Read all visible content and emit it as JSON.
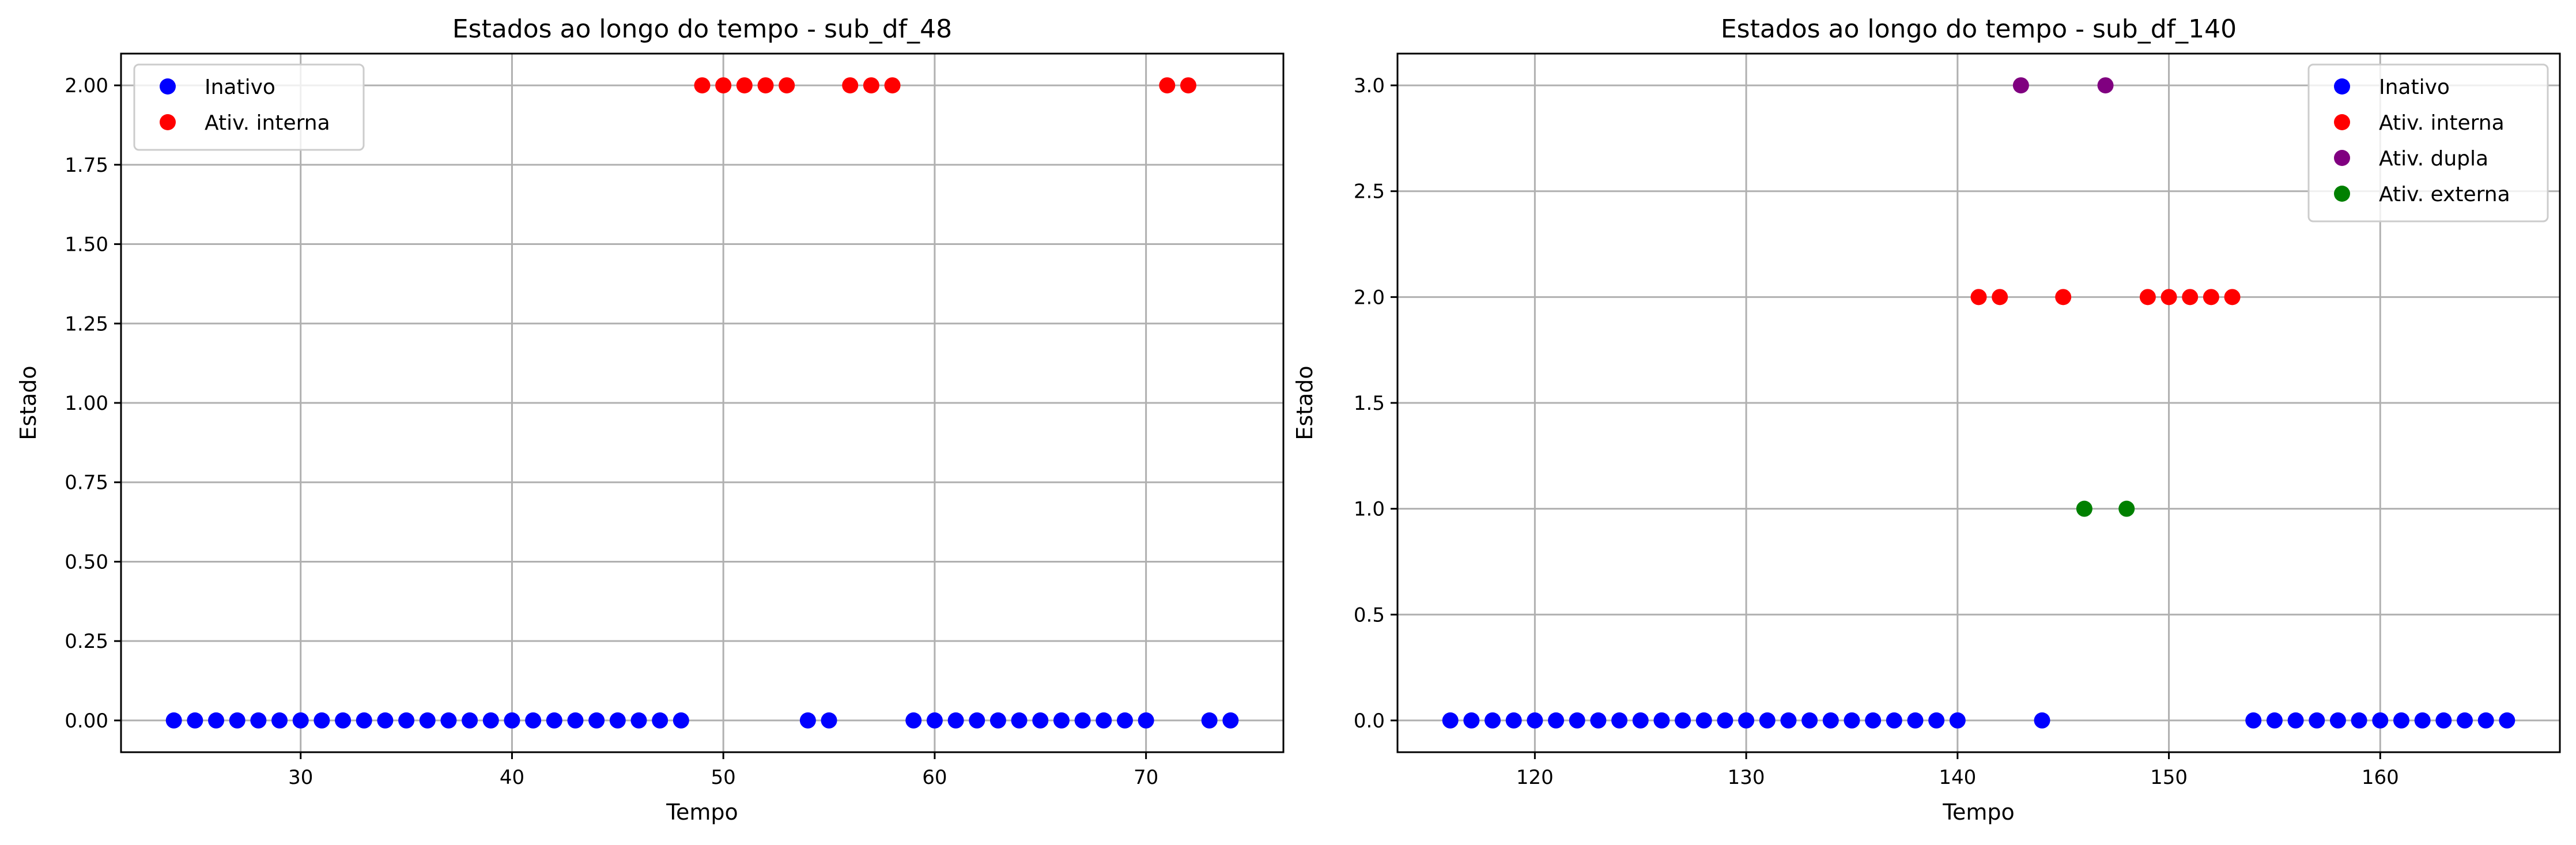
{
  "chart_data": [
    {
      "type": "scatter",
      "title": "Estados ao longo do tempo - sub_df_48",
      "xlabel": "Tempo",
      "ylabel": "Estado",
      "xlim": [
        21.5,
        76.5
      ],
      "ylim": [
        -0.1,
        2.1
      ],
      "xticks": [
        30,
        40,
        50,
        60,
        70
      ],
      "xtick_labels": [
        "30",
        "40",
        "50",
        "60",
        "70"
      ],
      "yticks": [
        0,
        0.25,
        0.5,
        0.75,
        1.0,
        1.25,
        1.5,
        1.75,
        2.0
      ],
      "ytick_labels": [
        "0.00",
        "0.25",
        "0.50",
        "0.75",
        "1.00",
        "1.25",
        "1.50",
        "1.75",
        "2.00"
      ],
      "grid": true,
      "legend_position": "top-left",
      "series": [
        {
          "name": "Inativo",
          "color": "#0000ff",
          "x": [
            24,
            25,
            26,
            27,
            28,
            29,
            30,
            31,
            32,
            33,
            34,
            35,
            36,
            37,
            38,
            39,
            40,
            41,
            42,
            43,
            44,
            45,
            46,
            47,
            48,
            54,
            55,
            59,
            60,
            61,
            62,
            63,
            64,
            65,
            66,
            67,
            68,
            69,
            70,
            73,
            74
          ],
          "y": [
            0,
            0,
            0,
            0,
            0,
            0,
            0,
            0,
            0,
            0,
            0,
            0,
            0,
            0,
            0,
            0,
            0,
            0,
            0,
            0,
            0,
            0,
            0,
            0,
            0,
            0,
            0,
            0,
            0,
            0,
            0,
            0,
            0,
            0,
            0,
            0,
            0,
            0,
            0,
            0,
            0
          ]
        },
        {
          "name": "Ativ. interna",
          "color": "#ff0000",
          "x": [
            49,
            50,
            51,
            52,
            53,
            56,
            57,
            58,
            71,
            72
          ],
          "y": [
            2,
            2,
            2,
            2,
            2,
            2,
            2,
            2,
            2,
            2
          ]
        }
      ]
    },
    {
      "type": "scatter",
      "title": "Estados ao longo do tempo - sub_df_140",
      "xlabel": "Tempo",
      "ylabel": "Estado",
      "xlim": [
        113.5,
        168.5
      ],
      "ylim": [
        -0.15,
        3.15
      ],
      "xticks": [
        120,
        130,
        140,
        150,
        160
      ],
      "xtick_labels": [
        "120",
        "130",
        "140",
        "150",
        "160"
      ],
      "yticks": [
        0,
        0.5,
        1.0,
        1.5,
        2.0,
        2.5,
        3.0
      ],
      "ytick_labels": [
        "0.0",
        "0.5",
        "1.0",
        "1.5",
        "2.0",
        "2.5",
        "3.0"
      ],
      "grid": true,
      "legend_position": "top-right",
      "series": [
        {
          "name": "Inativo",
          "color": "#0000ff",
          "x": [
            116,
            117,
            118,
            119,
            120,
            121,
            122,
            123,
            124,
            125,
            126,
            127,
            128,
            129,
            130,
            131,
            132,
            133,
            134,
            135,
            136,
            137,
            138,
            139,
            140,
            144,
            154,
            155,
            156,
            157,
            158,
            159,
            160,
            161,
            162,
            163,
            164,
            165,
            166
          ],
          "y": [
            0,
            0,
            0,
            0,
            0,
            0,
            0,
            0,
            0,
            0,
            0,
            0,
            0,
            0,
            0,
            0,
            0,
            0,
            0,
            0,
            0,
            0,
            0,
            0,
            0,
            0,
            0,
            0,
            0,
            0,
            0,
            0,
            0,
            0,
            0,
            0,
            0,
            0,
            0
          ]
        },
        {
          "name": "Ativ. interna",
          "color": "#ff0000",
          "x": [
            141,
            142,
            145,
            149,
            150,
            151,
            152,
            153
          ],
          "y": [
            2,
            2,
            2,
            2,
            2,
            2,
            2,
            2
          ]
        },
        {
          "name": "Ativ. dupla",
          "color": "#800080",
          "x": [
            143,
            147
          ],
          "y": [
            3,
            3
          ]
        },
        {
          "name": "Ativ. externa",
          "color": "#008000",
          "x": [
            146,
            148
          ],
          "y": [
            1,
            1
          ]
        }
      ]
    }
  ]
}
